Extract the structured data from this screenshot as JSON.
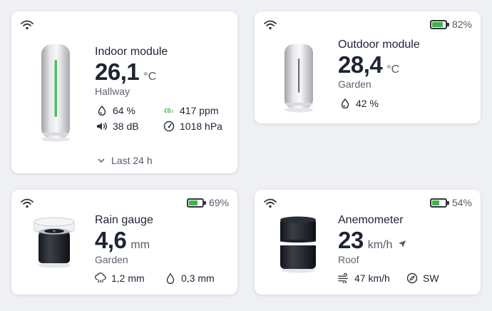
{
  "colors": {
    "accent_green": "#3ab54a",
    "text_dark": "#1d2433",
    "text_muted": "#5b6370",
    "background": "#eef0f4"
  },
  "indoor": {
    "title": "Indoor module",
    "value": "26,1",
    "unit": "°C",
    "location": "Hallway",
    "humidity": "64 %",
    "co2_label": "CO₂",
    "co2": "417 ppm",
    "noise": "38 dB",
    "pressure": "1018 hPa",
    "history_label": "Last 24 h",
    "icons": [
      "wifi-icon",
      "humidity-icon",
      "co2-icon",
      "speaker-icon",
      "gauge-icon",
      "chevron-down-icon"
    ]
  },
  "outdoor": {
    "title": "Outdoor module",
    "value": "28,4",
    "unit": "°C",
    "location": "Garden",
    "humidity": "42 %",
    "battery": {
      "label": "82%",
      "level": 0.82
    },
    "icons": [
      "wifi-icon",
      "battery-icon",
      "humidity-icon"
    ]
  },
  "rain": {
    "title": "Rain gauge",
    "value": "4,6",
    "unit": "mm",
    "location": "Garden",
    "rain_1": "1,2 mm",
    "rain_2": "0,3 mm",
    "battery": {
      "label": "69%",
      "level": 0.69
    },
    "icons": [
      "wifi-icon",
      "battery-icon",
      "rain-cloud-icon",
      "raindrop-icon"
    ]
  },
  "wind": {
    "title": "Anemometer",
    "value": "23",
    "unit": "km/h",
    "location": "Roof",
    "gust": "47 km/h",
    "direction": "SW",
    "battery": {
      "label": "54%",
      "level": 0.54
    },
    "icons": [
      "wifi-icon",
      "battery-icon",
      "direction-arrow-icon",
      "wind-icon",
      "compass-icon"
    ]
  }
}
